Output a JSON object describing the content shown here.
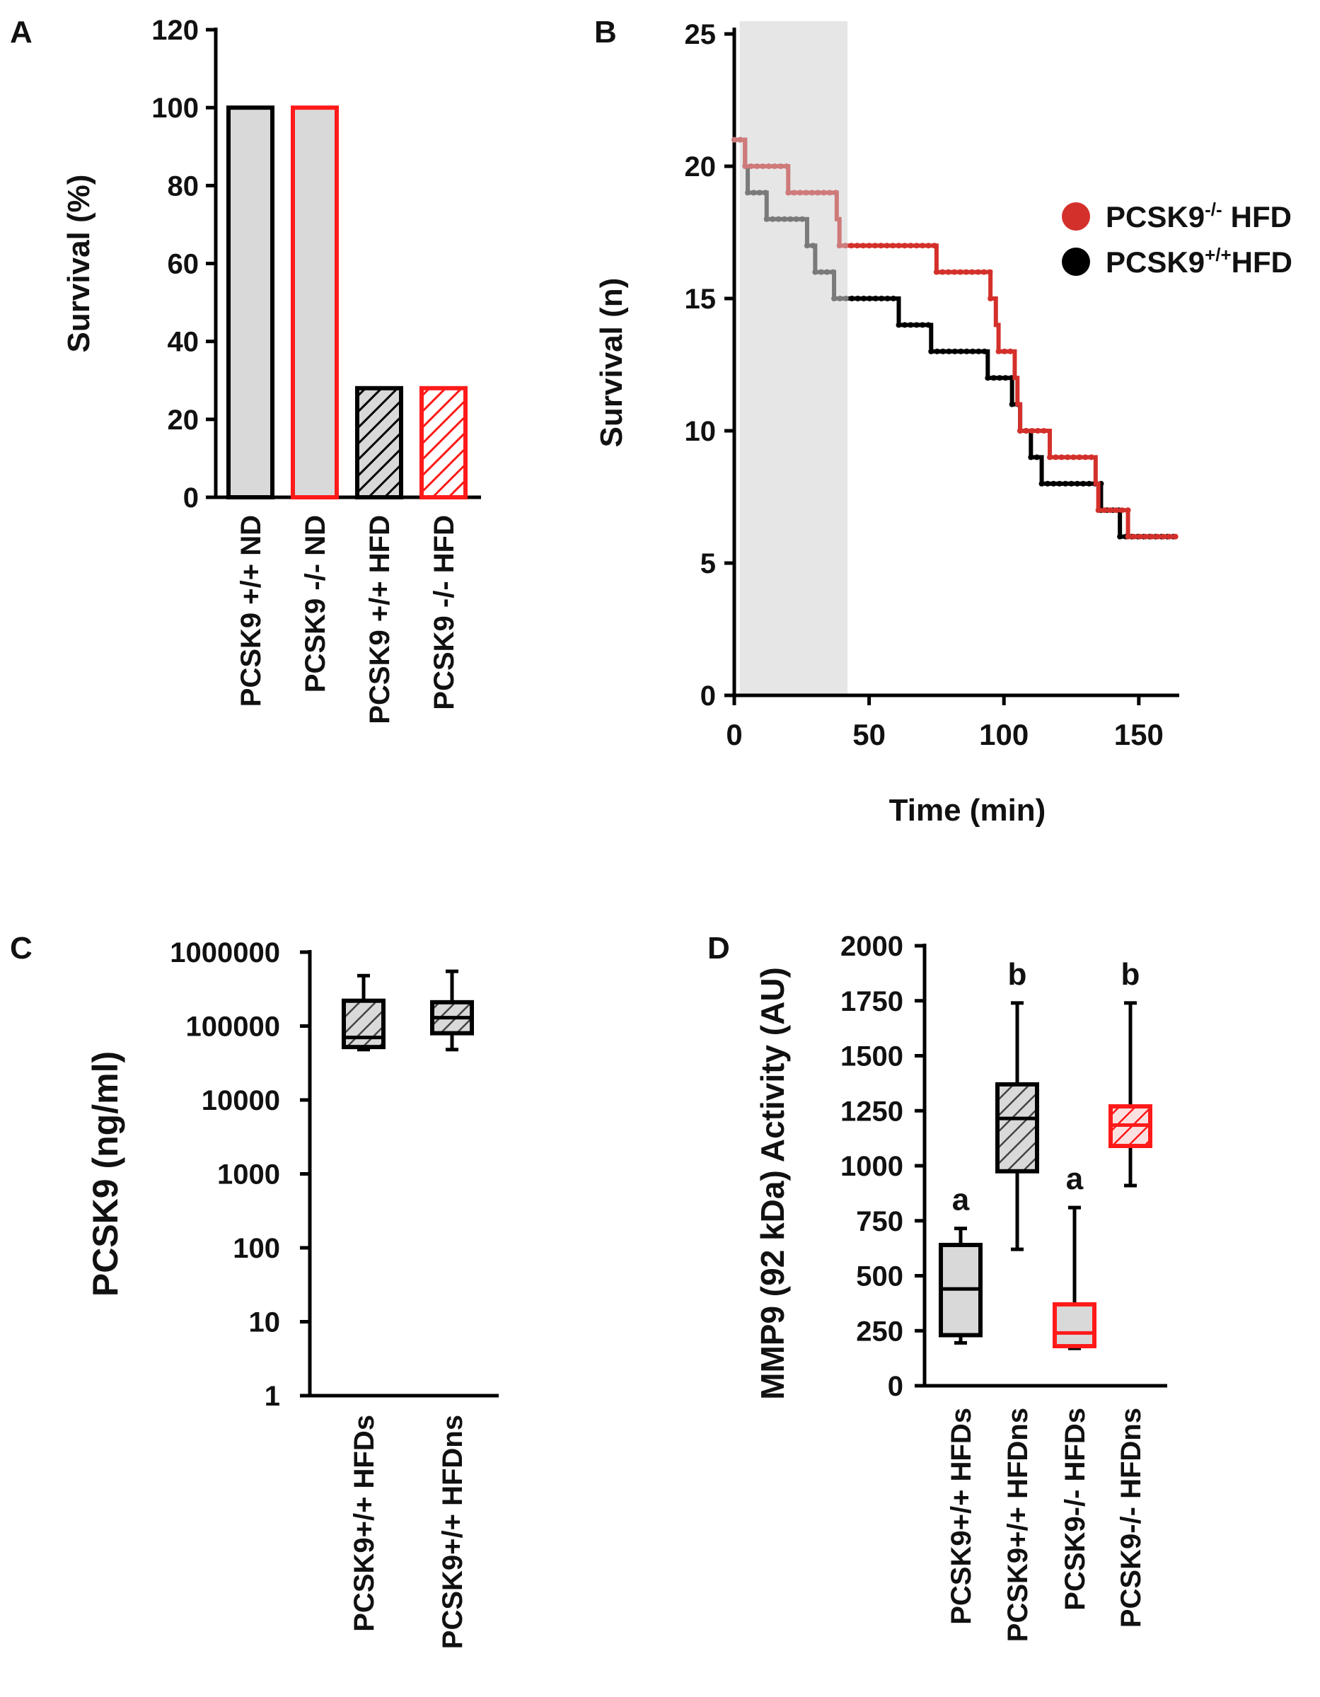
{
  "colors": {
    "black": "#000000",
    "red": "#ff1a1a",
    "fill": "#d9d9d9",
    "km_red": "#d4302b",
    "km_pink": "#cf7a7a",
    "km_gray": "#7a7a7a",
    "shade": "#e6e6e6"
  },
  "chart_data": [
    {
      "panel": "A",
      "type": "bar",
      "ylabel": "Survival (%)",
      "ylim": [
        0,
        120
      ],
      "yticks": [
        "0",
        "20",
        "40",
        "60",
        "80",
        "100",
        "120"
      ],
      "categories": [
        "PCSK9 +/+ ND",
        "PCSK9 -/- ND",
        "PCSK9 +/+ HFD",
        "PCSK9 -/- HFD"
      ],
      "values": [
        100,
        100,
        28,
        28
      ],
      "styles": [
        "solid-black",
        "solid-red",
        "hatched-black",
        "hatched-red"
      ]
    },
    {
      "panel": "B",
      "type": "line",
      "xlabel": "Time (min)",
      "ylabel": "Survival (n)",
      "xlim": [
        0,
        165
      ],
      "ylim": [
        0,
        25
      ],
      "xticks": [
        "0",
        "50",
        "100",
        "150"
      ],
      "yticks": [
        "0",
        "5",
        "10",
        "15",
        "20",
        "25"
      ],
      "shaded_interval": [
        2,
        42
      ],
      "legend": [
        "PCSK9-/- HFD",
        "PCSK9+/+HFD"
      ],
      "series": [
        {
          "name": "PCSK9+/+HFD",
          "steps": [
            [
              0,
              21
            ],
            [
              4,
              21
            ],
            [
              4,
              20
            ],
            [
              5,
              20
            ],
            [
              5,
              19
            ],
            [
              12,
              19
            ],
            [
              12,
              18
            ],
            [
              27,
              18
            ],
            [
              27,
              17
            ],
            [
              30,
              17
            ],
            [
              30,
              16
            ],
            [
              37,
              16
            ],
            [
              37,
              15
            ],
            [
              61,
              15
            ],
            [
              61,
              14
            ],
            [
              73,
              14
            ],
            [
              73,
              13
            ],
            [
              94,
              13
            ],
            [
              94,
              12
            ],
            [
              103,
              12
            ],
            [
              103,
              11
            ],
            [
              106,
              11
            ],
            [
              106,
              10
            ],
            [
              110,
              10
            ],
            [
              110,
              9
            ],
            [
              114,
              9
            ],
            [
              114,
              8
            ],
            [
              136,
              8
            ],
            [
              136,
              7
            ],
            [
              143,
              7
            ],
            [
              143,
              6
            ],
            [
              164,
              6
            ]
          ]
        },
        {
          "name": "PCSK9-/- HFD",
          "steps": [
            [
              0,
              21
            ],
            [
              4,
              21
            ],
            [
              4,
              20
            ],
            [
              20,
              20
            ],
            [
              20,
              19
            ],
            [
              38,
              19
            ],
            [
              38,
              18
            ],
            [
              39,
              18
            ],
            [
              39,
              17
            ],
            [
              75,
              17
            ],
            [
              75,
              16
            ],
            [
              95,
              16
            ],
            [
              95,
              15
            ],
            [
              97,
              15
            ],
            [
              97,
              14
            ],
            [
              98,
              14
            ],
            [
              98,
              13
            ],
            [
              104,
              13
            ],
            [
              104,
              12
            ],
            [
              105,
              12
            ],
            [
              105,
              11
            ],
            [
              106,
              11
            ],
            [
              106,
              10
            ],
            [
              117,
              10
            ],
            [
              117,
              9
            ],
            [
              134,
              9
            ],
            [
              134,
              8
            ],
            [
              135,
              8
            ],
            [
              135,
              7
            ],
            [
              146,
              7
            ],
            [
              146,
              6
            ],
            [
              164,
              6
            ]
          ]
        }
      ]
    },
    {
      "panel": "C",
      "type": "box",
      "scale": "log",
      "ylabel": "PCSK9 (ng/ml)",
      "ylim": [
        1,
        1000000
      ],
      "yticks": [
        "1",
        "10",
        "100",
        "1000",
        "10000",
        "100000",
        "1000000"
      ],
      "categories": [
        "PCSK9+/+ HFDs",
        "PCSK9+/+ HFDns"
      ],
      "boxes": [
        {
          "min": 48000,
          "q1": 52000,
          "median": 70000,
          "q3": 220000,
          "max": 480000
        },
        {
          "min": 48000,
          "q1": 80000,
          "median": 130000,
          "q3": 210000,
          "max": 550000
        }
      ]
    },
    {
      "panel": "D",
      "type": "box",
      "ylabel": "MMP9 (92 kDa) Activity (AU)",
      "ylim": [
        0,
        2000
      ],
      "yticks": [
        "0",
        "250",
        "500",
        "750",
        "1000",
        "1250",
        "1500",
        "1750",
        "2000"
      ],
      "categories": [
        "PCSK9+/+ HFDs",
        "PCSK9+/+ HFDns",
        "PCSK9-/- HFDs",
        "PCSK9-/- HFDns"
      ],
      "letters": [
        "a",
        "b",
        "a",
        "b"
      ],
      "boxes": [
        {
          "min": 195,
          "q1": 230,
          "median": 440,
          "q3": 640,
          "max": 715
        },
        {
          "min": 620,
          "q1": 975,
          "median": 1215,
          "q3": 1370,
          "max": 1740
        },
        {
          "min": 170,
          "q1": 180,
          "median": 240,
          "q3": 370,
          "max": 810
        },
        {
          "min": 910,
          "q1": 1090,
          "median": 1185,
          "q3": 1270,
          "max": 1740
        }
      ]
    }
  ],
  "panels": {
    "a": "A",
    "b": "B",
    "c": "C",
    "d": "D"
  },
  "legend_b": {
    "sup_neg": "-/-",
    "sup_pos": "+/+",
    "base": "PCSK9",
    "hfd": "HFD"
  }
}
